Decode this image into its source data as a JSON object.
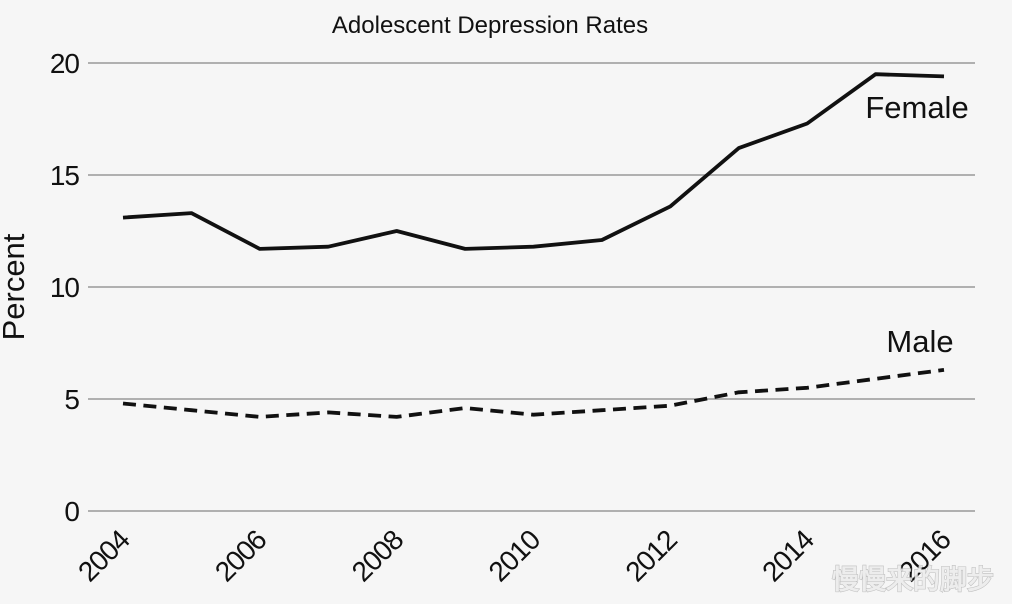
{
  "chart_data": {
    "type": "line",
    "title": "Adolescent Depression Rates",
    "xlabel": "",
    "ylabel": "Percent",
    "x": [
      2004,
      2005,
      2006,
      2007,
      2008,
      2009,
      2010,
      2011,
      2012,
      2013,
      2014,
      2015,
      2016
    ],
    "x_tick_labels": [
      "2004",
      "2006",
      "2008",
      "2010",
      "2012",
      "2014",
      "2016"
    ],
    "y_ticks": [
      0,
      5,
      10,
      15,
      20
    ],
    "xlim": [
      2004,
      2016
    ],
    "ylim": [
      0,
      20
    ],
    "grid": "horizontal-only",
    "legend_position": "inline-labels-right",
    "series": [
      {
        "name": "Female",
        "line_style": "solid",
        "values": [
          13.1,
          13.3,
          11.7,
          11.8,
          12.5,
          11.7,
          11.8,
          12.1,
          13.6,
          16.2,
          17.3,
          19.5,
          19.4
        ]
      },
      {
        "name": "Male",
        "line_style": "dashed",
        "values": [
          4.8,
          4.5,
          4.2,
          4.4,
          4.2,
          4.6,
          4.3,
          4.5,
          4.7,
          5.3,
          5.5,
          5.9,
          6.3
        ]
      }
    ],
    "colors": {
      "line": "#111111",
      "grid": "#a6a6a6",
      "background": "#f6f6f6",
      "text": "#111111"
    }
  },
  "watermark": {
    "text": "慢慢来的脚步"
  }
}
